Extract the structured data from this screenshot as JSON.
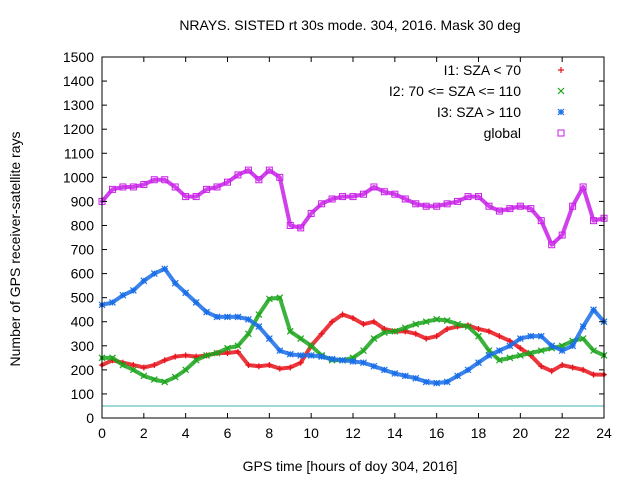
{
  "chart_data": {
    "type": "scatter",
    "title": "NRAYS. SISTED rt 30s mode. 304, 2016. Mask 30 deg",
    "xlabel": "GPS time [hours of doy 304, 2016]",
    "ylabel": "Number of GPS receiver-satellite rays",
    "xlim": [
      0,
      24
    ],
    "ylim": [
      0,
      1500
    ],
    "x_ticks": [
      0,
      2,
      4,
      6,
      8,
      10,
      12,
      14,
      16,
      18,
      20,
      22,
      24
    ],
    "y_ticks": [
      0,
      100,
      200,
      300,
      400,
      500,
      600,
      700,
      800,
      900,
      1000,
      1100,
      1200,
      1300,
      1400,
      1500
    ],
    "legend_position": "top-right",
    "reference_line": {
      "y": 50,
      "color": "#3fb6b6"
    },
    "series": [
      {
        "name": "I1: SZA < 70",
        "marker": "+",
        "color": "#e8141c",
        "x": [
          0,
          0.5,
          1,
          1.5,
          2,
          2.5,
          3,
          3.5,
          4,
          4.5,
          5,
          5.5,
          6,
          6.5,
          7,
          7.5,
          8,
          8.5,
          9,
          9.5,
          10,
          10.5,
          11,
          11.5,
          12,
          12.5,
          13,
          13.5,
          14,
          14.5,
          15,
          15.5,
          16,
          16.5,
          17,
          17.5,
          18,
          18.5,
          19,
          19.5,
          20,
          20.5,
          21,
          21.5,
          22,
          22.5,
          23,
          23.5,
          24
        ],
        "y": [
          220,
          240,
          230,
          220,
          210,
          220,
          240,
          255,
          260,
          255,
          260,
          270,
          270,
          275,
          220,
          215,
          220,
          205,
          210,
          230,
          300,
          350,
          400,
          430,
          415,
          390,
          400,
          370,
          360,
          360,
          350,
          330,
          340,
          370,
          380,
          385,
          370,
          360,
          340,
          320,
          290,
          260,
          215,
          195,
          220,
          210,
          200,
          180,
          180
        ]
      },
      {
        "name": "I2: 70 <= SZA <= 110",
        "marker": "x",
        "color": "#1ca51c",
        "x": [
          0,
          0.5,
          1,
          1.5,
          2,
          2.5,
          3,
          3.5,
          4,
          4.5,
          5,
          5.5,
          6,
          6.5,
          7,
          7.5,
          8,
          8.5,
          9,
          9.5,
          10,
          10.5,
          11,
          11.5,
          12,
          12.5,
          13,
          13.5,
          14,
          14.5,
          15,
          15.5,
          16,
          16.5,
          17,
          17.5,
          18,
          18.5,
          19,
          19.5,
          20,
          20.5,
          21,
          21.5,
          22,
          22.5,
          23,
          23.5,
          24
        ],
        "y": [
          250,
          250,
          220,
          200,
          175,
          160,
          150,
          170,
          200,
          240,
          260,
          270,
          290,
          300,
          350,
          430,
          495,
          500,
          360,
          330,
          300,
          260,
          240,
          240,
          250,
          280,
          330,
          355,
          360,
          375,
          390,
          400,
          410,
          405,
          390,
          380,
          340,
          280,
          240,
          250,
          260,
          270,
          280,
          290,
          300,
          320,
          330,
          280,
          260
        ]
      },
      {
        "name": "I3: SZA > 110",
        "marker": "*",
        "color": "#1a6ee8",
        "x": [
          0,
          0.5,
          1,
          1.5,
          2,
          2.5,
          3,
          3.5,
          4,
          4.5,
          5,
          5.5,
          6,
          6.5,
          7,
          7.5,
          8,
          8.5,
          9,
          9.5,
          10,
          10.5,
          11,
          11.5,
          12,
          12.5,
          13,
          13.5,
          14,
          14.5,
          15,
          15.5,
          16,
          16.5,
          17,
          17.5,
          18,
          18.5,
          19,
          19.5,
          20,
          20.5,
          21,
          21.5,
          22,
          22.5,
          23,
          23.5,
          24
        ],
        "y": [
          470,
          480,
          510,
          530,
          570,
          600,
          620,
          560,
          520,
          480,
          440,
          420,
          420,
          420,
          410,
          380,
          330,
          280,
          265,
          260,
          260,
          255,
          245,
          240,
          235,
          230,
          215,
          200,
          185,
          175,
          165,
          150,
          145,
          150,
          175,
          200,
          230,
          260,
          280,
          300,
          330,
          340,
          340,
          300,
          280,
          300,
          380,
          450,
          400
        ]
      },
      {
        "name": "global",
        "marker": "square",
        "color": "#c81ee8",
        "x": [
          0,
          0.5,
          1,
          1.5,
          2,
          2.5,
          3,
          3.5,
          4,
          4.5,
          5,
          5.5,
          6,
          6.5,
          7,
          7.5,
          8,
          8.5,
          9,
          9.5,
          10,
          10.5,
          11,
          11.5,
          12,
          12.5,
          13,
          13.5,
          14,
          14.5,
          15,
          15.5,
          16,
          16.5,
          17,
          17.5,
          18,
          18.5,
          19,
          19.5,
          20,
          20.5,
          21,
          21.5,
          22,
          22.5,
          23,
          23.5,
          24
        ],
        "y": [
          900,
          950,
          960,
          960,
          970,
          990,
          990,
          960,
          920,
          920,
          950,
          960,
          980,
          1010,
          1030,
          990,
          1030,
          1000,
          800,
          790,
          850,
          890,
          910,
          920,
          920,
          930,
          960,
          940,
          930,
          910,
          890,
          880,
          880,
          890,
          900,
          920,
          920,
          880,
          860,
          870,
          880,
          870,
          820,
          720,
          760,
          880,
          960,
          820,
          830
        ]
      }
    ]
  }
}
